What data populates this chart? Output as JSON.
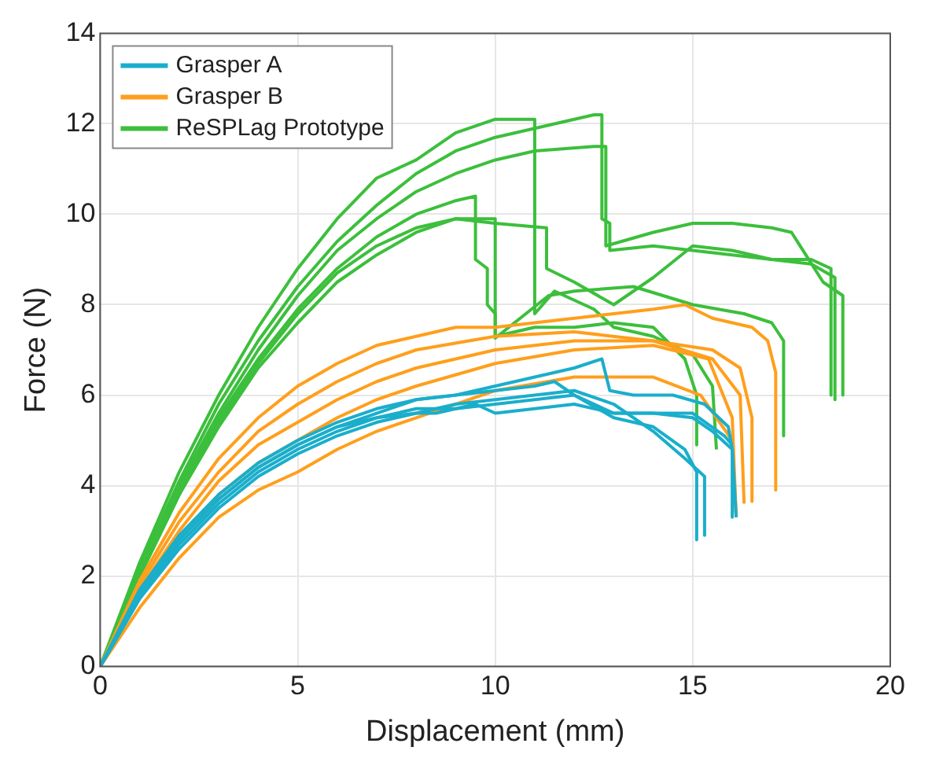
{
  "chart_data": {
    "type": "line",
    "xlabel": "Displacement (mm)",
    "ylabel": "Force (N)",
    "xlim": [
      0,
      20
    ],
    "xticks": [
      0,
      5,
      10,
      15,
      20
    ],
    "ylim": [
      0,
      14
    ],
    "yticks": [
      0,
      2,
      4,
      6,
      8,
      10,
      12,
      14
    ],
    "grid": true,
    "legend": "top left",
    "marker": "none",
    "line_style": "solid",
    "series": [
      {
        "name": "Grasper A",
        "color": "#1aaecb",
        "x": [
          0,
          1,
          2,
          3,
          4,
          5,
          6,
          7,
          8,
          9,
          10,
          11,
          12,
          12.7,
          12.9,
          13.5,
          14.5,
          15.3,
          15.9,
          16,
          16
        ],
        "values": [
          0,
          1.6,
          2.8,
          3.7,
          4.4,
          4.9,
          5.3,
          5.6,
          5.9,
          6,
          6.2,
          6.4,
          6.6,
          6.8,
          6.1,
          6,
          6,
          5.8,
          5.3,
          4.8,
          3.3
        ]
      },
      {
        "color": "#1aaecb",
        "x": [
          0,
          1,
          2,
          3,
          4,
          5,
          6,
          7,
          8,
          9,
          10,
          11,
          11.5,
          12,
          13,
          14,
          14.8,
          15.1,
          15.1
        ],
        "values": [
          0,
          1.7,
          2.9,
          3.8,
          4.5,
          5,
          5.4,
          5.7,
          5.9,
          6,
          6.1,
          6.2,
          6.3,
          6,
          5.5,
          5.3,
          4.8,
          4.3,
          2.8
        ]
      },
      {
        "color": "#1aaecb",
        "x": [
          0,
          1,
          2,
          3,
          4,
          5,
          6,
          7,
          8,
          9,
          10,
          11,
          12,
          13,
          14,
          15,
          15.5,
          16,
          16.1
        ],
        "values": [
          0,
          1.5,
          2.7,
          3.6,
          4.3,
          4.8,
          5.2,
          5.5,
          5.7,
          5.7,
          5.8,
          5.9,
          6,
          5.6,
          5.6,
          5.5,
          5.2,
          4.8,
          3.3
        ]
      },
      {
        "color": "#1aaecb",
        "x": [
          0,
          1,
          2,
          3,
          4,
          5,
          6,
          7,
          8,
          8.5,
          9.5,
          10,
          11,
          12,
          13,
          14,
          15,
          15.8,
          16
        ],
        "values": [
          0,
          1.6,
          2.8,
          3.7,
          4.4,
          4.9,
          5.3,
          5.5,
          5.6,
          5.6,
          5.8,
          5.6,
          5.7,
          5.8,
          5.6,
          5.6,
          5.6,
          5.1,
          4.9
        ]
      },
      {
        "color": "#1aaecb",
        "x": [
          0,
          1,
          2,
          3,
          4,
          5,
          6,
          7,
          8,
          9,
          10,
          11,
          12,
          13,
          14,
          14.8,
          15.3,
          15.3
        ],
        "values": [
          0,
          1.5,
          2.6,
          3.5,
          4.2,
          4.7,
          5.1,
          5.4,
          5.6,
          5.8,
          5.9,
          6,
          6.1,
          5.8,
          5.2,
          4.6,
          4.2,
          2.9
        ]
      },
      {
        "name": "Grasper B",
        "color": "#ff9f1c",
        "x": [
          0,
          1,
          2,
          3,
          4,
          5,
          6,
          7,
          8,
          9,
          10,
          11,
          12,
          13,
          14,
          14.8,
          15.5,
          16.5,
          16.9,
          17.1,
          17.1
        ],
        "values": [
          0,
          1.9,
          3.4,
          4.6,
          5.5,
          6.2,
          6.7,
          7.1,
          7.3,
          7.5,
          7.5,
          7.6,
          7.7,
          7.8,
          7.9,
          8,
          7.7,
          7.5,
          7.2,
          6.5,
          3.9
        ]
      },
      {
        "color": "#ff9f1c",
        "x": [
          0,
          1,
          2,
          3,
          4,
          5,
          6,
          7,
          8,
          10,
          12,
          14,
          15.5,
          16.2,
          16.5,
          16.5
        ],
        "values": [
          0,
          1.8,
          3.2,
          4.3,
          5.2,
          5.8,
          6.3,
          6.7,
          7,
          7.3,
          7.4,
          7.2,
          7,
          6.6,
          5.5,
          3.65
        ]
      },
      {
        "color": "#ff9f1c",
        "x": [
          0,
          1,
          2,
          3,
          4,
          5,
          6,
          7,
          8,
          10,
          12,
          14,
          15.5,
          16.2,
          16.3
        ],
        "values": [
          0,
          1.7,
          3,
          4.1,
          4.9,
          5.4,
          5.9,
          6.3,
          6.6,
          7,
          7.2,
          7.2,
          6.8,
          6,
          3.6
        ]
      },
      {
        "color": "#ff9f1c",
        "x": [
          0,
          1,
          2,
          3,
          4,
          5,
          6,
          7,
          8,
          10,
          12,
          14,
          15.4,
          16,
          16.1
        ],
        "values": [
          0,
          1.6,
          2.8,
          3.8,
          4.5,
          5,
          5.5,
          5.9,
          6.2,
          6.7,
          7,
          7.1,
          6.8,
          5.5,
          3.3
        ]
      },
      {
        "color": "#ff9f1c",
        "x": [
          0,
          1,
          2,
          3,
          4,
          5,
          6,
          7,
          8,
          10,
          12,
          14,
          15.2,
          16,
          16.1
        ],
        "values": [
          0,
          1.3,
          2.4,
          3.3,
          3.9,
          4.3,
          4.8,
          5.2,
          5.5,
          6.1,
          6.4,
          6.4,
          6,
          5,
          3.3
        ]
      },
      {
        "name": "ReSPLag Prototype",
        "color": "#3cbf3c",
        "x": [
          0,
          1,
          2,
          3,
          4,
          5,
          6,
          7,
          8,
          9,
          10,
          10.4,
          11,
          11,
          11.5,
          12.5,
          13,
          14,
          15,
          15.5,
          15.6
        ],
        "values": [
          0,
          2.3,
          4.3,
          6,
          7.5,
          8.8,
          9.9,
          10.8,
          11.2,
          11.8,
          12.1,
          12.1,
          12.1,
          7.8,
          8.3,
          7.9,
          7.5,
          7.3,
          6.9,
          6.2,
          4.8
        ]
      },
      {
        "color": "#3cbf3c",
        "x": [
          0,
          1,
          2,
          3,
          4,
          5,
          6,
          7,
          8,
          9,
          10,
          11,
          12,
          12.5,
          12.7,
          12.7,
          12.9,
          12.9,
          14,
          15,
          16,
          17,
          18,
          18.5,
          18.5
        ],
        "values": [
          0,
          2.2,
          4.1,
          5.8,
          7.2,
          8.4,
          9.4,
          10.2,
          10.9,
          11.4,
          11.7,
          11.9,
          12.1,
          12.2,
          12.2,
          9.9,
          9.8,
          9.2,
          9.3,
          9.2,
          9.1,
          9,
          9,
          8.8,
          6
        ]
      },
      {
        "color": "#3cbf3c",
        "x": [
          0,
          1,
          2,
          3,
          4,
          5,
          6,
          7,
          8,
          9,
          10,
          11,
          12.5,
          12.8,
          12.8,
          14,
          15,
          16,
          17,
          17.5,
          18.3,
          18.8,
          18.8
        ],
        "values": [
          0,
          2.1,
          4,
          5.6,
          7,
          8.2,
          9.2,
          9.9,
          10.5,
          10.9,
          11.2,
          11.4,
          11.5,
          11.5,
          9.3,
          9.6,
          9.8,
          9.8,
          9.7,
          9.6,
          8.5,
          8.2,
          6
        ]
      },
      {
        "color": "#3cbf3c",
        "x": [
          0,
          1,
          2,
          3,
          4,
          5,
          6,
          7,
          8,
          9,
          9.5,
          9.5,
          9.8,
          9.8,
          10,
          10,
          11,
          12,
          13,
          14,
          14.8,
          15.1,
          15.1
        ],
        "values": [
          0,
          2.1,
          3.9,
          5.5,
          6.8,
          7.9,
          8.8,
          9.5,
          10,
          10.3,
          10.4,
          9,
          8.8,
          8,
          7.8,
          7.3,
          7.5,
          7.5,
          7.6,
          7.5,
          6.8,
          6,
          4.9
        ]
      },
      {
        "color": "#3cbf3c",
        "x": [
          0,
          1,
          2,
          3,
          4,
          5,
          6,
          7,
          8,
          9,
          10,
          11.3,
          11.3,
          12,
          13,
          14,
          15,
          16,
          17,
          18,
          18.6,
          18.6
        ],
        "values": [
          0,
          2,
          3.8,
          5.4,
          6.7,
          7.8,
          8.7,
          9.3,
          9.7,
          9.9,
          9.8,
          9.7,
          8.8,
          8.5,
          8,
          8.6,
          9.3,
          9.2,
          9,
          8.9,
          8.6,
          5.9
        ]
      },
      {
        "color": "#3cbf3c",
        "x": [
          0,
          1,
          2,
          3,
          4,
          5,
          6,
          7,
          8,
          9,
          9.9,
          10,
          10,
          11.35,
          12,
          13.5,
          15,
          16.3,
          17,
          17.3,
          17.3
        ],
        "values": [
          0,
          2,
          3.8,
          5.3,
          6.6,
          7.6,
          8.5,
          9.1,
          9.6,
          9.9,
          9.9,
          9.9,
          7.26,
          8.2,
          8.3,
          8.4,
          8,
          7.8,
          7.6,
          7.2,
          5.1
        ]
      }
    ]
  }
}
